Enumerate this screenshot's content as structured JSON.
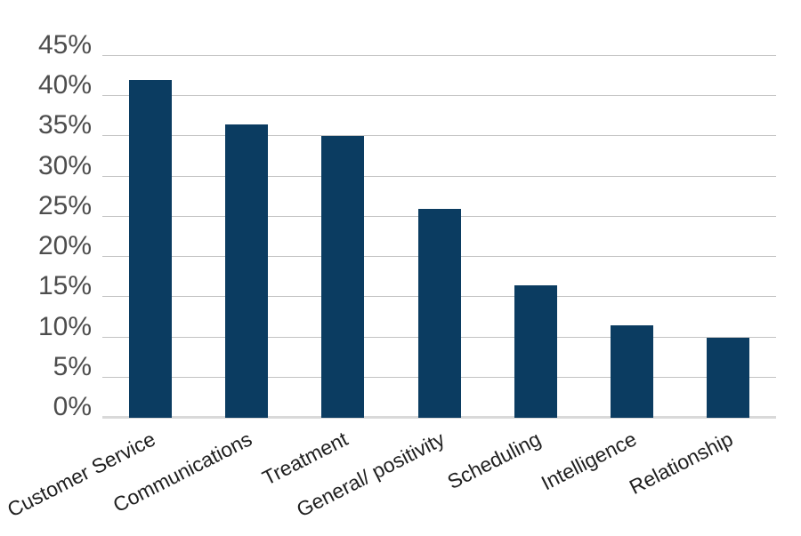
{
  "chart_data": {
    "type": "bar",
    "title": "",
    "xlabel": "",
    "ylabel": "",
    "categories": [
      "Customer Service",
      "Communications",
      "Treatment",
      "General/ positivity",
      "Scheduling",
      "Intelligence",
      "Relationship"
    ],
    "values": [
      42,
      36.5,
      35,
      26,
      16.5,
      11.5,
      10
    ],
    "ylim": [
      0,
      45
    ],
    "yticks": [
      0,
      5,
      10,
      15,
      20,
      25,
      30,
      35,
      40,
      45
    ],
    "ytick_labels": [
      "0%",
      "5%",
      "10%",
      "15%",
      "20%",
      "25%",
      "30%",
      "35%",
      "40%",
      "45%"
    ],
    "grid": "horizontal",
    "legend": "none",
    "x_label_rotation_deg": -27,
    "colors": {
      "bar": "#0b3c61",
      "gridline": "#c3c3c3",
      "baseline": "#d9d9d9",
      "y_tick_label": "#4d4d4d",
      "x_tick_label": "#1f1f1f",
      "background": "#ffffff"
    }
  }
}
